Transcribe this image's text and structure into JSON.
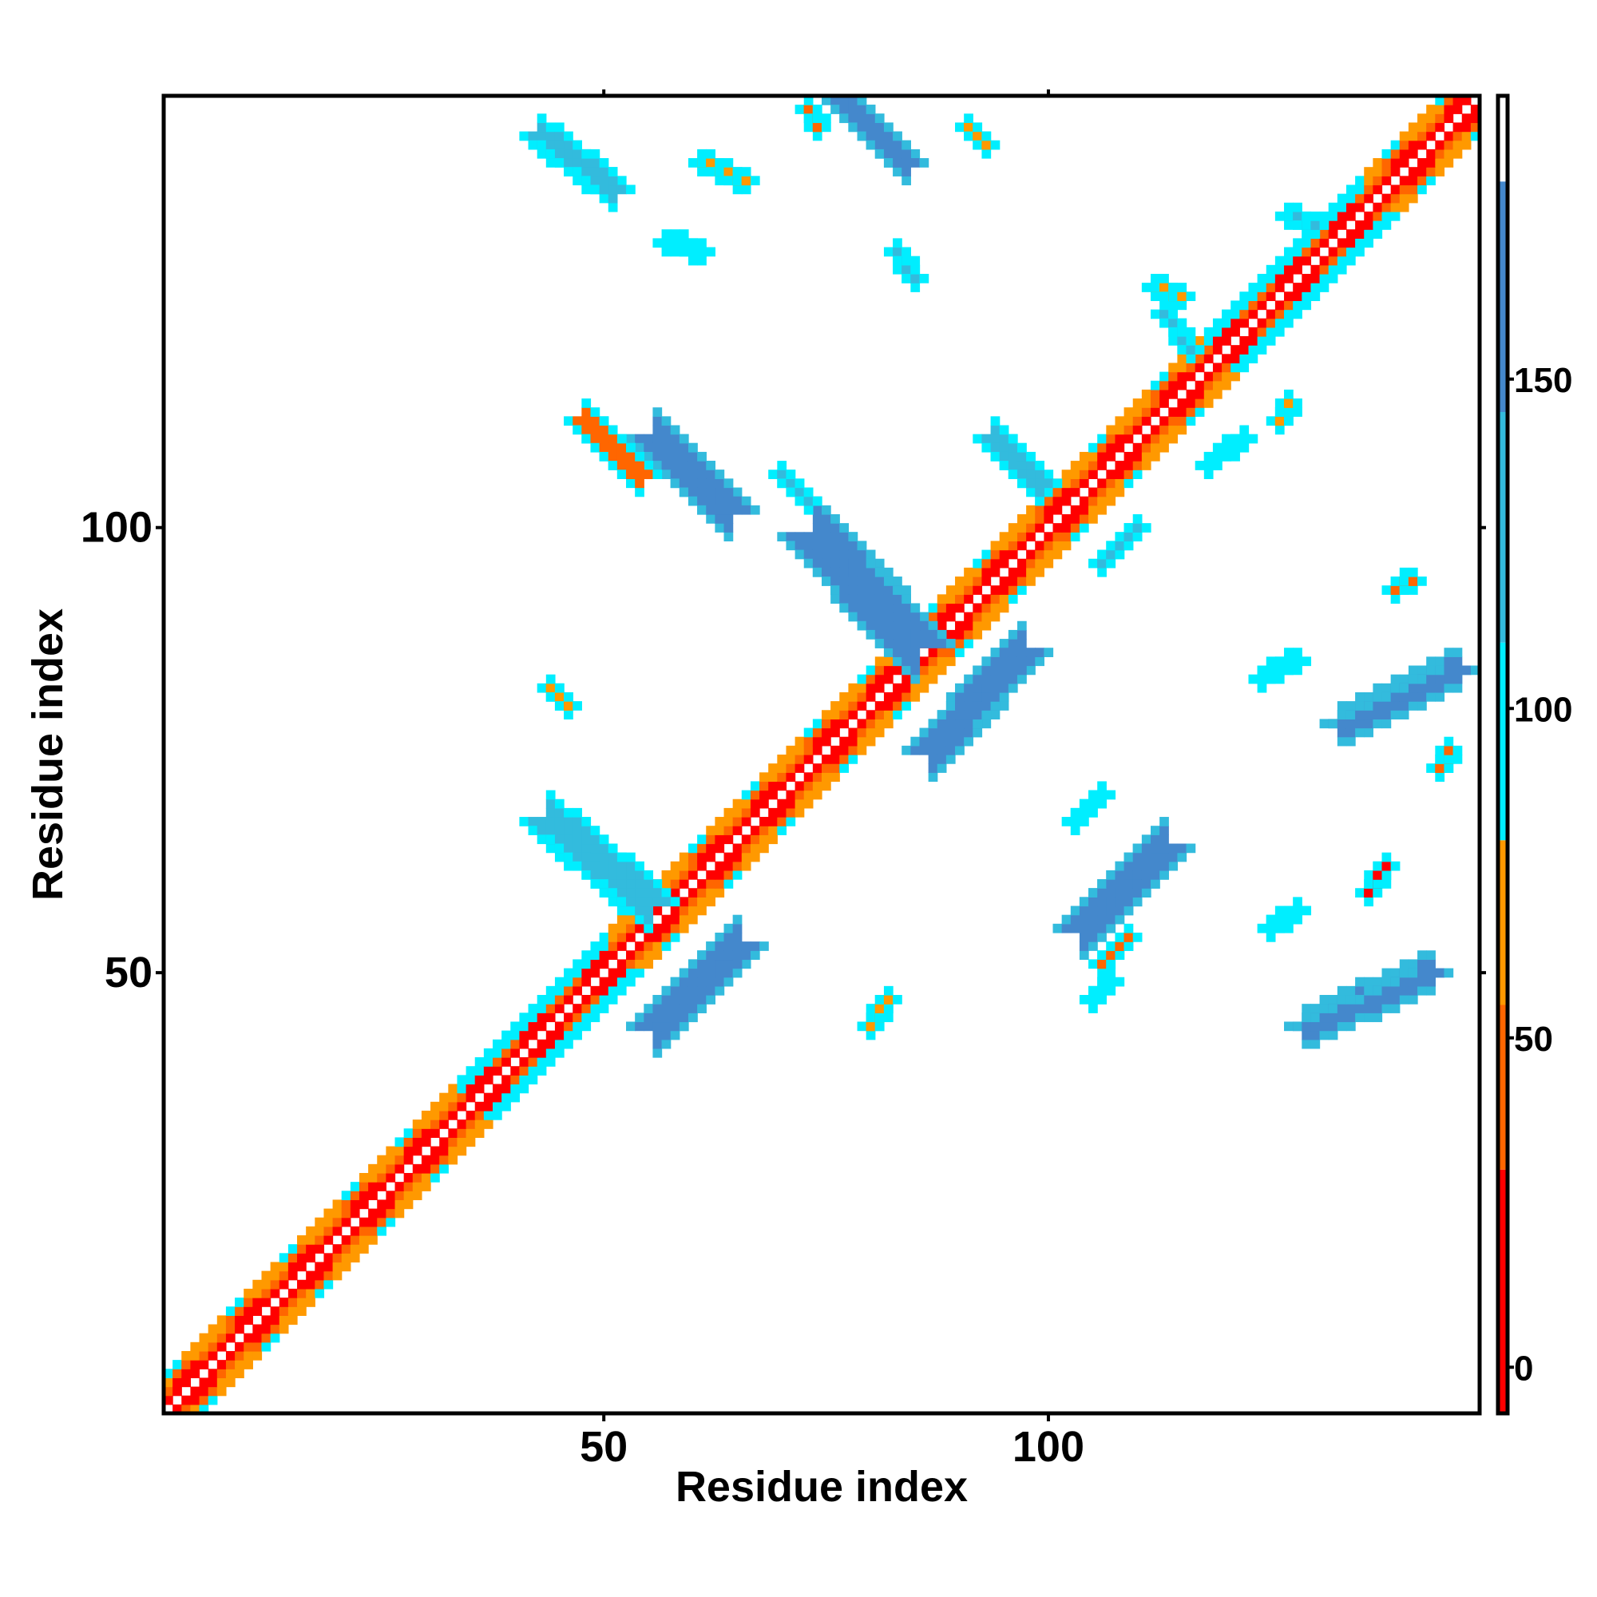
{
  "chart_data": {
    "type": "heatmap",
    "subtype": "residue contact map",
    "xlabel": "Residue index",
    "ylabel": "Residue index",
    "xlim": [
      1,
      148
    ],
    "ylim": [
      1,
      148
    ],
    "x_ticks": [
      50,
      100
    ],
    "y_ticks": [
      50,
      100
    ],
    "grid": false,
    "colorbar": {
      "ticks": [
        0,
        50,
        100,
        150
      ],
      "range": [
        -7,
        193
      ],
      "bands": [
        {
          "from": -7,
          "to": 30,
          "color": "#ff0000"
        },
        {
          "from": 30,
          "to": 55,
          "color": "#ff6600"
        },
        {
          "from": 55,
          "to": 80,
          "color": "#ff9900"
        },
        {
          "from": 80,
          "to": 110,
          "color": "#00eeff"
        },
        {
          "from": 110,
          "to": 145,
          "color": "#33bbdd"
        },
        {
          "from": 145,
          "to": 180,
          "color": "#4488cc"
        },
        {
          "from": 180,
          "to": 193,
          "color": "#ffffff"
        }
      ]
    },
    "diagonal_band": {
      "offsets": [
        1,
        2,
        3,
        4
      ],
      "x_range": [
        1,
        148
      ]
    },
    "features": [
      {
        "x": [
          43,
          51
        ],
        "y": [
          138,
          144
        ],
        "value": 140
      },
      {
        "x": [
          77,
          84
        ],
        "y": [
          141,
          148
        ],
        "value": 155
      },
      {
        "x": [
          56,
          64
        ],
        "y": [
          102,
          110
        ],
        "value": 155
      },
      {
        "x": [
          74,
          85
        ],
        "y": [
          87,
          99
        ],
        "value": 160
      },
      {
        "x": [
          87,
          97
        ],
        "y": [
          75,
          86
        ],
        "value": 160
      },
      {
        "x": [
          44,
          55
        ],
        "y": [
          58,
          67
        ],
        "value": 130
      },
      {
        "x": [
          56,
          65
        ],
        "y": [
          44,
          53
        ],
        "value": 150
      },
      {
        "x": [
          104,
          113
        ],
        "y": [
          55,
          64
        ],
        "value": 150
      },
      {
        "x": [
          133,
          146
        ],
        "y": [
          78,
          84
        ],
        "value": 160
      },
      {
        "x": [
          129,
          143
        ],
        "y": [
          44,
          50
        ],
        "value": 155
      },
      {
        "x": [
          94,
          99
        ],
        "y": [
          105,
          110
        ],
        "value": 130
      },
      {
        "x": [
          106,
          110
        ],
        "y": [
          96,
          100
        ],
        "value": 125
      },
      {
        "x": [
          118,
          122
        ],
        "y": [
          107,
          110
        ],
        "value": 100
      },
      {
        "x": [
          113,
          116
        ],
        "y": [
          120,
          124
        ],
        "value": 115
      },
      {
        "x": [
          70,
          73
        ],
        "y": [
          103,
          106
        ],
        "value": 135
      },
      {
        "x": [
          57,
          61
        ],
        "y": [
          131,
          132
        ],
        "value": 100
      },
      {
        "x": [
          61,
          66
        ],
        "y": [
          139,
          141
        ],
        "value": 60
      },
      {
        "x": [
          73,
          74
        ],
        "y": [
          145,
          147
        ],
        "value": 45
      },
      {
        "x": [
          91,
          93
        ],
        "y": [
          143,
          145
        ],
        "value": 55
      },
      {
        "x": [
          112,
          115
        ],
        "y": [
          126,
          127
        ],
        "value": 55
      },
      {
        "x": [
          44,
          46
        ],
        "y": [
          80,
          82
        ],
        "value": 65
      },
      {
        "x": [
          80,
          82
        ],
        "y": [
          44,
          47
        ],
        "value": 70
      },
      {
        "x": [
          106,
          109
        ],
        "y": [
          51,
          54
        ],
        "value": 40
      },
      {
        "x": [
          136,
          138
        ],
        "y": [
          59,
          62
        ],
        "value": 25
      },
      {
        "x": [
          139,
          141
        ],
        "y": [
          93,
          94
        ],
        "value": 50
      },
      {
        "x": [
          144,
          145
        ],
        "y": [
          73,
          75
        ],
        "value": 50
      },
      {
        "x": [
          126,
          127
        ],
        "y": [
          112,
          114
        ],
        "value": 70
      },
      {
        "x": [
          48,
          54
        ],
        "y": [
          106,
          112
        ],
        "value": 35
      },
      {
        "x": [
          127,
          130
        ],
        "y": [
          134,
          135
        ],
        "value": 130
      },
      {
        "x": [
          124,
          128
        ],
        "y": [
          83,
          85
        ],
        "value": 100
      },
      {
        "x": [
          103,
          106
        ],
        "y": [
          67,
          70
        ],
        "value": 95
      },
      {
        "x": [
          83,
          85
        ],
        "y": [
          128,
          131
        ],
        "value": 125
      },
      {
        "x": [
          125,
          128
        ],
        "y": [
          55,
          57
        ],
        "value": 100
      },
      {
        "x": [
          105,
          107
        ],
        "y": [
          47,
          49
        ],
        "value": 95
      }
    ]
  }
}
